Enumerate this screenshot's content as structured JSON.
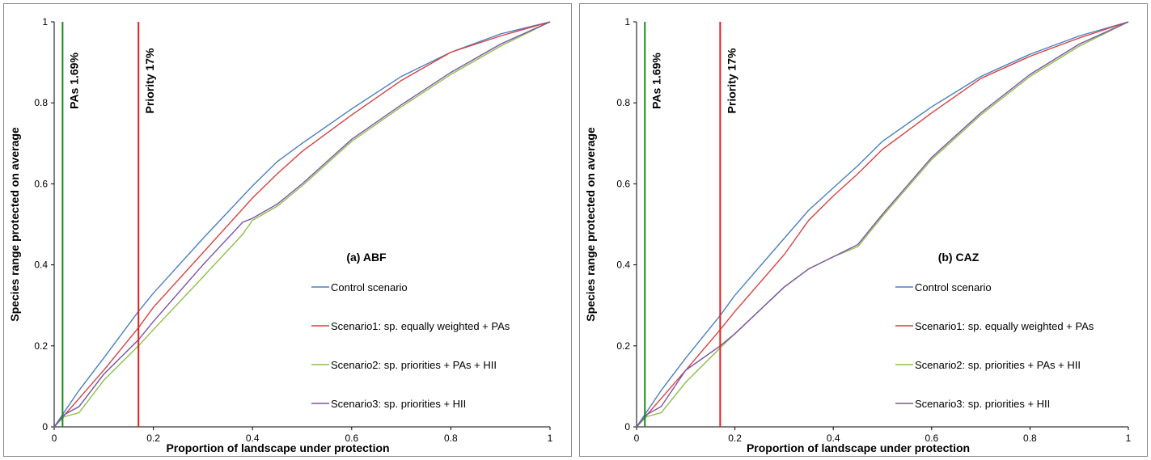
{
  "chart_data": [
    {
      "type": "line",
      "title": "(a) ABF",
      "xlabel": "Proportion of landscape under protection",
      "ylabel": "Species range protected on average",
      "xlim": [
        0,
        1
      ],
      "ylim": [
        0,
        1
      ],
      "xticks": [
        "0",
        "0.2",
        "0.4",
        "0.6",
        "0.8",
        "1"
      ],
      "yticks": [
        "0",
        "0.2",
        "0.4",
        "0.6",
        "0.8",
        "1"
      ],
      "grid": false,
      "legend_position": "right",
      "vertical_lines": [
        {
          "x": 0.0169,
          "label": "PAs 1.69%",
          "color": "#1a8a1a"
        },
        {
          "x": 0.17,
          "label": "Priority 17%",
          "color": "#e02020"
        }
      ],
      "series": [
        {
          "name": "Control scenario",
          "color": "#4a7fc1",
          "x": [
            0,
            0.05,
            0.1,
            0.17,
            0.2,
            0.3,
            0.4,
            0.45,
            0.5,
            0.6,
            0.7,
            0.8,
            0.9,
            1.0
          ],
          "y": [
            0,
            0.09,
            0.17,
            0.285,
            0.33,
            0.465,
            0.595,
            0.655,
            0.7,
            0.785,
            0.865,
            0.925,
            0.97,
            1.0
          ]
        },
        {
          "name": "Scenario1: sp. equally weighted + PAs",
          "color": "#d94040",
          "x": [
            0,
            0.05,
            0.1,
            0.17,
            0.2,
            0.3,
            0.4,
            0.45,
            0.5,
            0.6,
            0.7,
            0.8,
            0.9,
            1.0
          ],
          "y": [
            0,
            0.07,
            0.14,
            0.245,
            0.295,
            0.43,
            0.565,
            0.625,
            0.68,
            0.77,
            0.855,
            0.925,
            0.965,
            1.0
          ]
        },
        {
          "name": "Scenario2: sp. priorities + PAs + HII",
          "color": "#8cc04a",
          "x": [
            0,
            0.02,
            0.05,
            0.1,
            0.17,
            0.2,
            0.3,
            0.38,
            0.4,
            0.45,
            0.5,
            0.6,
            0.7,
            0.8,
            0.9,
            1.0
          ],
          "y": [
            0,
            0.025,
            0.035,
            0.115,
            0.2,
            0.24,
            0.37,
            0.475,
            0.51,
            0.545,
            0.595,
            0.705,
            0.79,
            0.87,
            0.94,
            1.0
          ]
        },
        {
          "name": "Scenario3: sp. priorities + HII",
          "color": "#7b52a8",
          "x": [
            0,
            0.02,
            0.05,
            0.1,
            0.17,
            0.2,
            0.3,
            0.38,
            0.4,
            0.45,
            0.5,
            0.6,
            0.7,
            0.8,
            0.9,
            1.0
          ],
          "y": [
            0,
            0.03,
            0.05,
            0.13,
            0.215,
            0.26,
            0.4,
            0.505,
            0.515,
            0.55,
            0.6,
            0.71,
            0.795,
            0.875,
            0.945,
            1.0
          ]
        }
      ]
    },
    {
      "type": "line",
      "title": "(b) CAZ",
      "xlabel": "Proportion of landscape under protection",
      "ylabel": "Species range protected on average",
      "xlim": [
        0,
        1
      ],
      "ylim": [
        0,
        1
      ],
      "xticks": [
        "0",
        "0.2",
        "0.4",
        "0.6",
        "0.8",
        "1"
      ],
      "yticks": [
        "0",
        "0.2",
        "0.4",
        "0.6",
        "0.8",
        "1"
      ],
      "grid": false,
      "legend_position": "right",
      "vertical_lines": [
        {
          "x": 0.0169,
          "label": "PAs 1.69%",
          "color": "#1a8a1a"
        },
        {
          "x": 0.17,
          "label": "Priority 17%",
          "color": "#e02020"
        }
      ],
      "series": [
        {
          "name": "Control scenario",
          "color": "#4a7fc1",
          "x": [
            0,
            0.05,
            0.1,
            0.17,
            0.2,
            0.3,
            0.35,
            0.4,
            0.45,
            0.5,
            0.6,
            0.7,
            0.8,
            0.9,
            1.0
          ],
          "y": [
            0,
            0.09,
            0.17,
            0.275,
            0.325,
            0.465,
            0.535,
            0.59,
            0.645,
            0.705,
            0.79,
            0.865,
            0.92,
            0.965,
            1.0
          ]
        },
        {
          "name": "Scenario1: sp. equally weighted + PAs",
          "color": "#d94040",
          "x": [
            0,
            0.05,
            0.1,
            0.17,
            0.2,
            0.3,
            0.35,
            0.4,
            0.45,
            0.5,
            0.6,
            0.7,
            0.8,
            0.9,
            1.0
          ],
          "y": [
            0,
            0.07,
            0.14,
            0.24,
            0.285,
            0.425,
            0.51,
            0.57,
            0.625,
            0.685,
            0.775,
            0.86,
            0.915,
            0.96,
            1.0
          ]
        },
        {
          "name": "Scenario2: sp. priorities + PAs + HII",
          "color": "#8cc04a",
          "x": [
            0,
            0.02,
            0.05,
            0.1,
            0.17,
            0.2,
            0.3,
            0.35,
            0.4,
            0.45,
            0.5,
            0.55,
            0.6,
            0.7,
            0.8,
            0.9,
            1.0
          ],
          "y": [
            0,
            0.025,
            0.035,
            0.11,
            0.195,
            0.23,
            0.345,
            0.39,
            0.42,
            0.445,
            0.52,
            0.59,
            0.66,
            0.77,
            0.865,
            0.94,
            1.0
          ]
        },
        {
          "name": "Scenario3: sp. priorities + HII",
          "color": "#7b52a8",
          "x": [
            0,
            0.02,
            0.05,
            0.1,
            0.17,
            0.2,
            0.3,
            0.35,
            0.4,
            0.45,
            0.5,
            0.55,
            0.6,
            0.7,
            0.8,
            0.9,
            1.0
          ],
          "y": [
            0,
            0.03,
            0.05,
            0.14,
            0.2,
            0.23,
            0.345,
            0.39,
            0.42,
            0.45,
            0.525,
            0.595,
            0.665,
            0.775,
            0.87,
            0.945,
            1.0
          ]
        }
      ]
    }
  ]
}
